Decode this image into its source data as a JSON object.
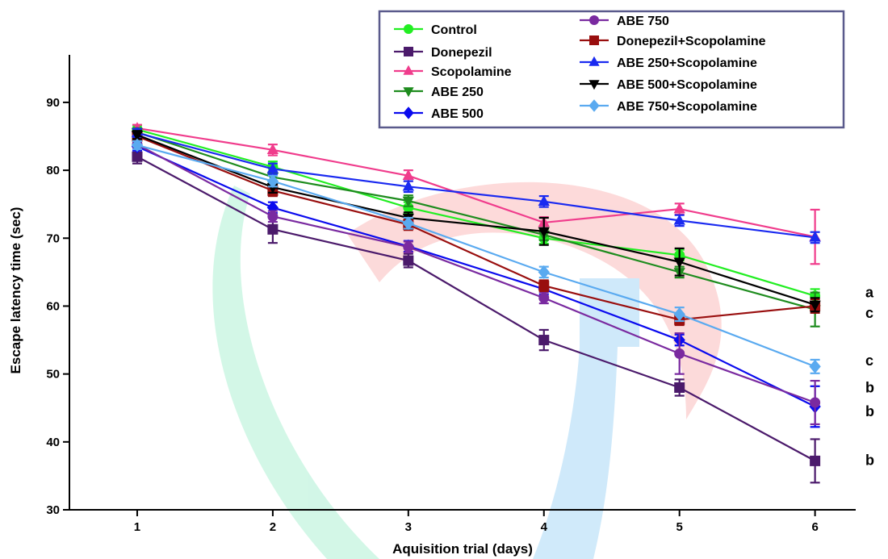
{
  "chart_data": {
    "type": "line",
    "title": "",
    "xlabel": "Aquisition trial (days)",
    "ylabel": "Escape latency time (sec)",
    "x": [
      1,
      2,
      3,
      4,
      5,
      6
    ],
    "xlim": [
      0.5,
      6.3
    ],
    "ylim": [
      30,
      97
    ],
    "xticks": [
      "1",
      "2",
      "3",
      "4",
      "5",
      "6"
    ],
    "yticks": [
      "30",
      "40",
      "50",
      "60",
      "70",
      "80",
      "90"
    ],
    "legend_position": "top-right",
    "series": [
      {
        "name": "Control",
        "color": "#22ee22",
        "marker": "circle",
        "values": [
          86,
          80.5,
          74.5,
          70,
          67.5,
          61.5
        ],
        "errors": [
          0.6,
          0.8,
          0.8,
          0.8,
          0.8,
          1
        ]
      },
      {
        "name": "Donepezil",
        "color": "#4b1a6b",
        "marker": "square",
        "values": [
          82,
          71.3,
          66.7,
          55,
          48,
          37.2
        ],
        "errors": [
          1,
          2,
          1,
          1.5,
          1.2,
          3.2
        ]
      },
      {
        "name": "Scopolamine",
        "color": "#f03c8c",
        "marker": "triangle-up",
        "values": [
          86.2,
          83,
          79.2,
          72.3,
          74.3,
          70.2
        ],
        "errors": [
          0.5,
          0.8,
          0.8,
          0.8,
          0.8,
          4
        ]
      },
      {
        "name": "ABE 250",
        "color": "#1e8c1e",
        "marker": "triangle-down",
        "values": [
          85.6,
          79,
          75.5,
          70.5,
          65,
          59.5
        ],
        "errors": [
          0.6,
          0.8,
          0.8,
          0.8,
          0.8,
          2.5
        ]
      },
      {
        "name": "ABE 500",
        "color": "#0a0aee",
        "marker": "diamond",
        "values": [
          83.5,
          74.5,
          68.8,
          62.5,
          55,
          45.2
        ],
        "errors": [
          0.6,
          0.8,
          0.8,
          0.8,
          0.8,
          3
        ]
      },
      {
        "name": "ABE 750",
        "color": "#7a2aa0",
        "marker": "circle",
        "values": [
          83.8,
          73.2,
          68.7,
          61.2,
          53,
          45.8
        ],
        "errors": [
          0.6,
          0.8,
          0.8,
          0.8,
          3,
          3.2
        ]
      },
      {
        "name": "Donepezil+Scopolamine",
        "color": "#990e0e",
        "marker": "square",
        "values": [
          85,
          77,
          72,
          63,
          58,
          60
        ],
        "errors": [
          0.6,
          0.8,
          0.8,
          0.8,
          0.8,
          1
        ]
      },
      {
        "name": "ABE 250+Scopolamine",
        "color": "#1a2af0",
        "marker": "triangle-up",
        "values": [
          85.5,
          80.2,
          77.6,
          75.4,
          72.6,
          70.1
        ],
        "errors": [
          0.6,
          0.8,
          0.8,
          0.8,
          0.8,
          0.8
        ]
      },
      {
        "name": "ABE 500+Scopolamine",
        "color": "#000000",
        "marker": "triangle-down",
        "values": [
          85.2,
          77.5,
          73,
          71,
          66.5,
          60.2
        ],
        "errors": [
          0.6,
          0.8,
          0.8,
          2,
          2,
          1
        ]
      },
      {
        "name": "ABE 750+Scopolamine",
        "color": "#5aaaf0",
        "marker": "diamond",
        "values": [
          83.7,
          78.4,
          72.2,
          65,
          58.8,
          51.1
        ],
        "errors": [
          0.6,
          0.8,
          0.8,
          0.8,
          1,
          1
        ]
      }
    ],
    "significance_labels": [
      {
        "text": "a",
        "y": 62
      },
      {
        "text": "c",
        "y": 59
      },
      {
        "text": "c",
        "y": 52
      },
      {
        "text": "b",
        "y": 48
      },
      {
        "text": "b",
        "y": 44.5
      },
      {
        "text": "b",
        "y": 37.3
      }
    ]
  }
}
